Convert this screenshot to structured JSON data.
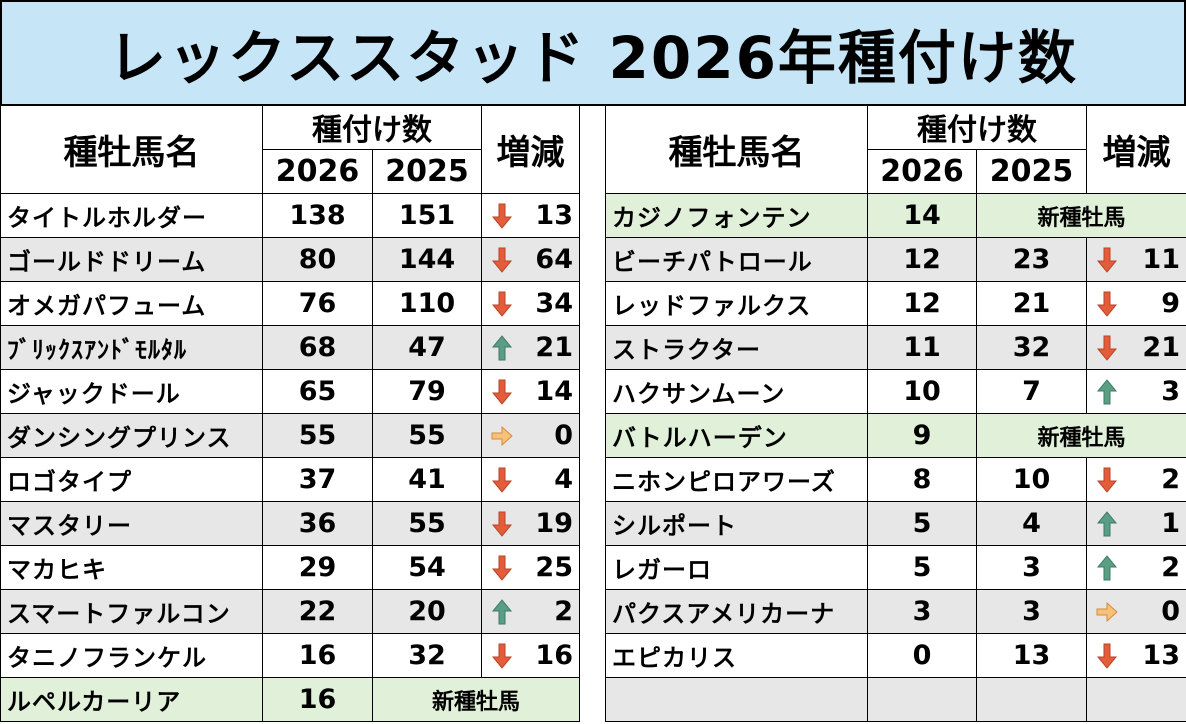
{
  "title": "レックススタッド 2026年種付け数",
  "headers": {
    "name": "種牡馬名",
    "count": "種付け数",
    "change": "増減",
    "year_current": "2026",
    "year_prev": "2025"
  },
  "new_label": "新種牡馬",
  "colors": {
    "up": "#5a9e86",
    "down": "#e35d3a",
    "flat": "#f2a65a",
    "green_row": "#e1f0d8",
    "gray_row": "#e7e7e7",
    "title_bg": "#c6e6f8"
  },
  "left": [
    {
      "name": "タイトルホルダー",
      "y2026": "138",
      "y2025": "151",
      "dir": "down",
      "change": "13"
    },
    {
      "name": "ゴールドドリーム",
      "y2026": "80",
      "y2025": "144",
      "dir": "down",
      "change": "64"
    },
    {
      "name": "オメガパフューム",
      "y2026": "76",
      "y2025": "110",
      "dir": "down",
      "change": "34"
    },
    {
      "name": "ﾌﾞﾘｯｸｽｱﾝﾄﾞﾓﾙﾀﾙ",
      "y2026": "68",
      "y2025": "47",
      "dir": "up",
      "change": "21"
    },
    {
      "name": "ジャックドール",
      "y2026": "65",
      "y2025": "79",
      "dir": "down",
      "change": "14"
    },
    {
      "name": "ダンシングプリンス",
      "y2026": "55",
      "y2025": "55",
      "dir": "flat",
      "change": "0"
    },
    {
      "name": "ロゴタイプ",
      "y2026": "37",
      "y2025": "41",
      "dir": "down",
      "change": "4"
    },
    {
      "name": "マスタリー",
      "y2026": "36",
      "y2025": "55",
      "dir": "down",
      "change": "19"
    },
    {
      "name": "マカヒキ",
      "y2026": "29",
      "y2025": "54",
      "dir": "down",
      "change": "25"
    },
    {
      "name": "スマートファルコン",
      "y2026": "22",
      "y2025": "20",
      "dir": "up",
      "change": "2"
    },
    {
      "name": "タニノフランケル",
      "y2026": "16",
      "y2025": "32",
      "dir": "down",
      "change": "16"
    },
    {
      "name": "ルペルカーリア",
      "y2026": "16",
      "new": true
    }
  ],
  "right": [
    {
      "name": "カジノフォンテン",
      "y2026": "14",
      "new": true
    },
    {
      "name": "ビーチパトロール",
      "y2026": "12",
      "y2025": "23",
      "dir": "down",
      "change": "11"
    },
    {
      "name": "レッドファルクス",
      "y2026": "12",
      "y2025": "21",
      "dir": "down",
      "change": "9"
    },
    {
      "name": "ストラクター",
      "y2026": "11",
      "y2025": "32",
      "dir": "down",
      "change": "21"
    },
    {
      "name": "ハクサンムーン",
      "y2026": "10",
      "y2025": "7",
      "dir": "up",
      "change": "3"
    },
    {
      "name": "バトルハーデン",
      "y2026": "9",
      "new": true
    },
    {
      "name": "ニホンピロアワーズ",
      "y2026": "8",
      "y2025": "10",
      "dir": "down",
      "change": "2"
    },
    {
      "name": "シルポート",
      "y2026": "5",
      "y2025": "4",
      "dir": "up",
      "change": "1"
    },
    {
      "name": "レガーロ",
      "y2026": "5",
      "y2025": "3",
      "dir": "up",
      "change": "2"
    },
    {
      "name": "パクスアメリカーナ",
      "y2026": "3",
      "y2025": "3",
      "dir": "flat",
      "change": "0"
    },
    {
      "name": "エピカリス",
      "y2026": "0",
      "y2025": "13",
      "dir": "down",
      "change": "13"
    }
  ]
}
